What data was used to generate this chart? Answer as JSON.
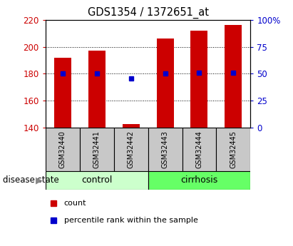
{
  "title": "GDS1354 / 1372651_at",
  "samples": [
    "GSM32440",
    "GSM32441",
    "GSM32442",
    "GSM32443",
    "GSM32444",
    "GSM32445"
  ],
  "count_values": [
    192,
    197,
    143,
    206,
    212,
    216
  ],
  "percentile_values": [
    50,
    50,
    46,
    50,
    51,
    51
  ],
  "ylim_left": [
    140,
    220
  ],
  "ylim_right": [
    0,
    100
  ],
  "yticks_left": [
    140,
    160,
    180,
    200,
    220
  ],
  "yticks_right": [
    0,
    25,
    50,
    75,
    100
  ],
  "ytick_labels_right": [
    "0",
    "25",
    "50",
    "75",
    "100%"
  ],
  "bar_color": "#CC0000",
  "dot_color": "#0000CC",
  "bar_bottom": 140,
  "n_control": 3,
  "n_cirrhosis": 3,
  "control_color": "#CCFFCC",
  "cirrhosis_color": "#66FF66",
  "sample_label_bg": "#C8C8C8",
  "legend_count_color": "#CC0000",
  "legend_dot_color": "#0000CC",
  "legend_count_label": "count",
  "legend_dot_label": "percentile rank within the sample",
  "disease_state_label": "disease state",
  "control_label": "control",
  "cirrhosis_label": "cirrhosis"
}
